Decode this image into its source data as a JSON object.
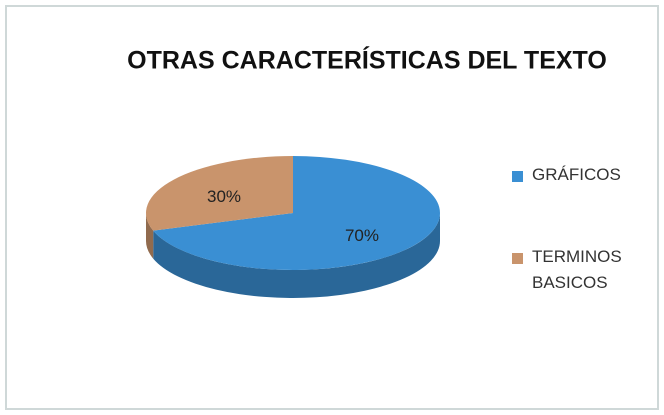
{
  "chart_data": {
    "type": "pie",
    "title": "OTRAS CARACTERÍSTICAS DEL TEXTO",
    "categories": [
      "GRÁFICOS",
      "TERMINOS BASICOS"
    ],
    "values": [
      70,
      30
    ],
    "value_labels": [
      "70%",
      "30%"
    ],
    "colors": [
      "#3a8fd3",
      "#c9946c"
    ],
    "legend": "right"
  }
}
